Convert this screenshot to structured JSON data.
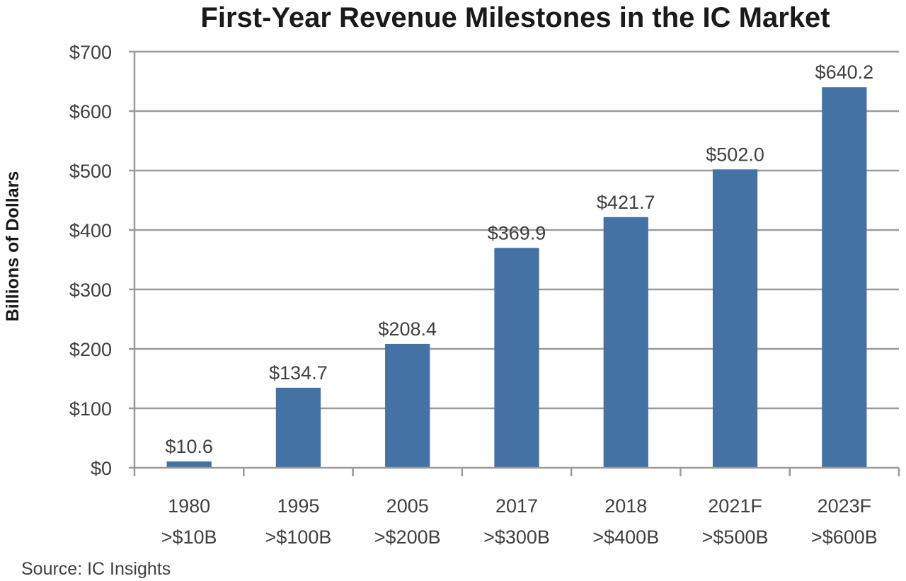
{
  "chart_data": {
    "type": "bar",
    "title": "First-Year Revenue Milestones in the IC Market",
    "xlabel": "",
    "ylabel": "Billions of Dollars",
    "ylim": [
      0,
      700
    ],
    "yticks": [
      0,
      100,
      200,
      300,
      400,
      500,
      600,
      700
    ],
    "ytick_labels": [
      "$0",
      "$100",
      "$200",
      "$300",
      "$400",
      "$500",
      "$600",
      "$700"
    ],
    "grid": true,
    "categories": [
      {
        "year": "1980",
        "milestone": ">$10B"
      },
      {
        "year": "1995",
        "milestone": ">$100B"
      },
      {
        "year": "2005",
        "milestone": ">$200B"
      },
      {
        "year": "2017",
        "milestone": ">$300B"
      },
      {
        "year": "2018",
        "milestone": ">$400B"
      },
      {
        "year": "2021F",
        "milestone": ">$500B"
      },
      {
        "year": "2023F",
        "milestone": ">$600B"
      }
    ],
    "values": [
      10.6,
      134.7,
      208.4,
      369.9,
      421.7,
      502.0,
      640.2
    ],
    "data_labels": [
      "$10.6",
      "$134.7",
      "$208.4",
      "$369.9",
      "$421.7",
      "$502.0",
      "$640.2"
    ],
    "bar_color": "#4472a4",
    "source": "Source:  IC Insights"
  }
}
